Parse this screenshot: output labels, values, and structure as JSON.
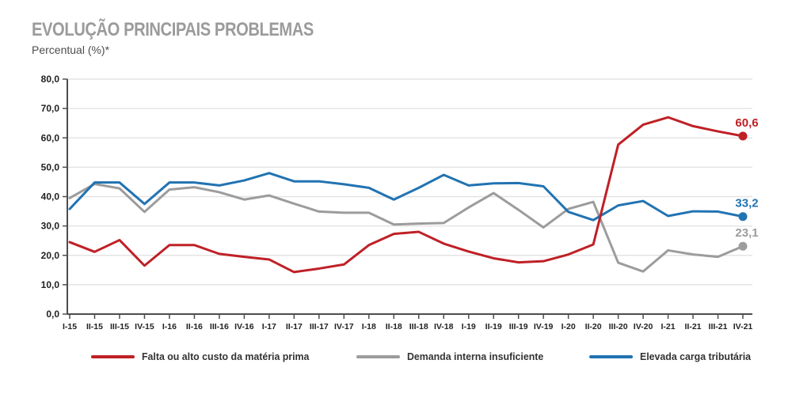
{
  "chart_data": {
    "type": "line",
    "title": "EVOLUÇÃO PRINCIPAIS PROBLEMAS",
    "subtitle": "Percentual (%)*",
    "xlabel": "",
    "ylabel": "Percentual (%)*",
    "categories": [
      "I-15",
      "II-15",
      "III-15",
      "IV-15",
      "I-16",
      "II-16",
      "III-16",
      "IV-16",
      "I-17",
      "II-17",
      "III-17",
      "IV-17",
      "I-18",
      "II-18",
      "III-18",
      "IV-18",
      "I-19",
      "II-19",
      "III-19",
      "IV-19",
      "I-20",
      "II-20",
      "III-20",
      "IV-20",
      "I-21",
      "II-21",
      "III-21",
      "IV-21"
    ],
    "series": [
      {
        "name": "Falta ou alto custo da matéria prima",
        "color": "#bf2026",
        "end_label": "60,6",
        "values": [
          24.5,
          21.2,
          25.2,
          16.5,
          23.5,
          23.5,
          20.5,
          19.5,
          18.6,
          14.3,
          15.5,
          16.9,
          23.5,
          27.3,
          28.0,
          24.0,
          21.3,
          19.0,
          17.6,
          18.0,
          20.3,
          23.7,
          57.7,
          64.5,
          67.0,
          64.0,
          62.2,
          60.6
        ]
      },
      {
        "name": "Demanda interna insuficiente",
        "color": "#9c9c9c",
        "end_label": "23,1",
        "values": [
          39.5,
          44.3,
          42.8,
          34.8,
          42.4,
          43.2,
          41.5,
          39.0,
          40.4,
          37.6,
          34.9,
          34.5,
          34.5,
          30.5,
          30.8,
          31.0,
          36.3,
          41.2,
          35.5,
          29.5,
          35.8,
          38.2,
          17.5,
          14.5,
          21.7,
          20.3,
          19.5,
          23.1
        ]
      },
      {
        "name": "Elevada carga tributária",
        "color": "#2173b2",
        "end_label": "33,2",
        "values": [
          35.8,
          44.8,
          44.8,
          37.5,
          44.8,
          44.8,
          43.8,
          45.5,
          48.0,
          45.2,
          45.2,
          44.2,
          43.0,
          39.0,
          43.0,
          47.4,
          43.8,
          44.5,
          44.6,
          43.5,
          34.8,
          32.0,
          37.0,
          38.5,
          33.4,
          35.0,
          34.9,
          33.2
        ]
      }
    ],
    "draw_order": [
      1,
      2,
      0
    ],
    "ylim": [
      0,
      80
    ],
    "ytick_step": 10,
    "ytick_labels": [
      "0,0",
      "10,0",
      "20,0",
      "30,0",
      "40,0",
      "50,0",
      "60,0",
      "70,0",
      "80,0"
    ],
    "grid": true,
    "legend_position": "bottom",
    "axis_color": "#4d4d4d",
    "grid_color": "#e4e4e4"
  }
}
